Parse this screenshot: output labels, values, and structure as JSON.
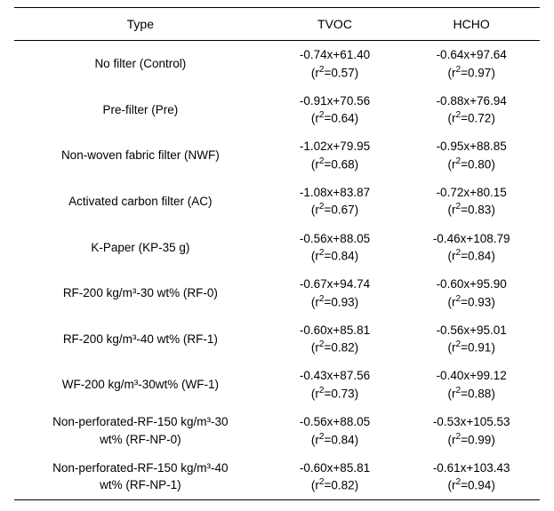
{
  "table": {
    "columns": [
      "Type",
      "TVOC",
      "HCHO"
    ],
    "col_widths_pct": [
      48,
      26,
      26
    ],
    "header_fontsize": 14,
    "cell_fontsize": 13.5,
    "text_color": "#000000",
    "border_color": "#000000",
    "background_color": "#ffffff",
    "rows": [
      {
        "type": {
          "l1": "No filter (Control)",
          "l2": ""
        },
        "tvoc": {
          "eq": "-0.74x+61.40",
          "r2": "0.57"
        },
        "hcho": {
          "eq": "-0.64x+97.64",
          "r2": "0.97"
        }
      },
      {
        "type": {
          "l1": "Pre-filter (Pre)",
          "l2": ""
        },
        "tvoc": {
          "eq": "-0.91x+70.56",
          "r2": "0.64"
        },
        "hcho": {
          "eq": "-0.88x+76.94",
          "r2": "0.72"
        }
      },
      {
        "type": {
          "l1": "Non-woven fabric filter (NWF)",
          "l2": ""
        },
        "tvoc": {
          "eq": "-1.02x+79.95",
          "r2": "0.68"
        },
        "hcho": {
          "eq": "-0.95x+88.85",
          "r2": "0.80"
        }
      },
      {
        "type": {
          "l1": "Activated carbon filter (AC)",
          "l2": ""
        },
        "tvoc": {
          "eq": "-1.08x+83.87",
          "r2": "0.67"
        },
        "hcho": {
          "eq": "-0.72x+80.15",
          "r2": "0.83"
        }
      },
      {
        "type": {
          "l1": "K-Paper (KP-35 g)",
          "l2": ""
        },
        "tvoc": {
          "eq": "-0.56x+88.05",
          "r2": "0.84"
        },
        "hcho": {
          "eq": "-0.46x+108.79",
          "r2": "0.84"
        }
      },
      {
        "type": {
          "l1": "RF-200 kg/m³-30 wt% (RF-0)",
          "l2": ""
        },
        "tvoc": {
          "eq": "-0.67x+94.74",
          "r2": "0.93"
        },
        "hcho": {
          "eq": "-0.60x+95.90",
          "r2": "0.93"
        }
      },
      {
        "type": {
          "l1": "RF-200 kg/m³-40 wt% (RF-1)",
          "l2": ""
        },
        "tvoc": {
          "eq": "-0.60x+85.81",
          "r2": "0.82"
        },
        "hcho": {
          "eq": "-0.56x+95.01",
          "r2": "0.91"
        }
      },
      {
        "type": {
          "l1": "WF-200 kg/m³-30wt% (WF-1)",
          "l2": ""
        },
        "tvoc": {
          "eq": "-0.43x+87.56",
          "r2": "0.73"
        },
        "hcho": {
          "eq": "-0.40x+99.12",
          "r2": "0.88"
        }
      },
      {
        "type": {
          "l1": "Non-perforated-RF-150 kg/m³-30",
          "l2": "wt% (RF-NP-0)"
        },
        "tvoc": {
          "eq": "-0.56x+88.05",
          "r2": "0.84"
        },
        "hcho": {
          "eq": "-0.53x+105.53",
          "r2": "0.99"
        }
      },
      {
        "type": {
          "l1": "Non-perforated-RF-150 kg/m³-40",
          "l2": "wt% (RF-NP-1)"
        },
        "tvoc": {
          "eq": "-0.60x+85.81",
          "r2": "0.82"
        },
        "hcho": {
          "eq": "-0.61x+103.43",
          "r2": "0.94"
        }
      }
    ]
  }
}
